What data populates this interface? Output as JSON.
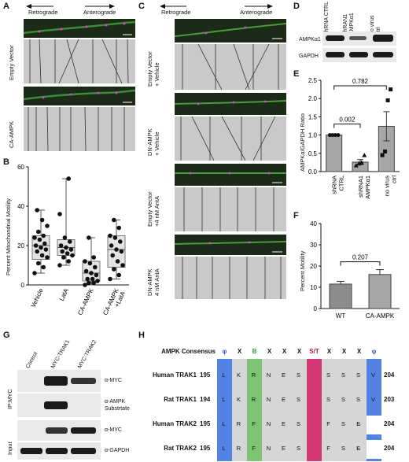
{
  "panel_letters": [
    "A",
    "B",
    "C",
    "D",
    "E",
    "F",
    "G",
    "H"
  ],
  "direction": {
    "retrograde": "Retrograde",
    "anterograde": "Anterograde"
  },
  "panel_a": {
    "row_labels": [
      "Empty Vector",
      "CA-AMPK"
    ]
  },
  "panel_c": {
    "row_labels": [
      "Empty Vector\n+ Vehicle",
      "DN-AMPK\n+ Vehicle",
      "Empty Vector\n+4 nM AntA",
      "DN-AMPK\n4 nM AntA"
    ]
  },
  "panel_d": {
    "lanes": [
      "shRNA CTRL",
      "shRAN1\nAMPKα1",
      "no virus\nctrl"
    ],
    "rows": [
      "AMPKα1",
      "GAPDH"
    ]
  },
  "panel_g": {
    "lanes": [
      "Control",
      "MYC-TRAK1",
      "MYC-TRAK2"
    ],
    "groups": [
      "IP:MYC",
      "Input"
    ],
    "rows": [
      "α-MYC",
      "α-AMPK\nSubstrtate",
      "α-MYC",
      "α-GAPDH"
    ]
  },
  "panel_h": {
    "consensus_label": "AMPK Consensus",
    "consensus": [
      "φ",
      "X",
      "B",
      "X",
      "X",
      "X",
      "S/T",
      "X",
      "X",
      "X",
      "φ"
    ],
    "rows": [
      {
        "name": "Human TRAK1",
        "start": "195",
        "end": "204",
        "residues": [
          "L",
          "K",
          "R",
          "N",
          "E",
          "S",
          "S",
          "S",
          "S",
          "V"
        ]
      },
      {
        "name": "Rat TRAK1",
        "start": "194",
        "end": "203",
        "residues": [
          "L",
          "K",
          "R",
          "N",
          "E",
          "S",
          "S",
          "S",
          "S",
          "V"
        ]
      },
      {
        "name": "Human TRAK2",
        "start": "195",
        "end": "204",
        "residues": [
          "L",
          "R",
          "F",
          "N",
          "E",
          "S",
          "F",
          "S",
          "L",
          "S"
        ]
      },
      {
        "name": "Rat TRAK2",
        "start": "195",
        "end": "204",
        "residues": [
          "L",
          "R",
          "F",
          "N",
          "E",
          "S",
          "F",
          "S",
          "L",
          "S"
        ]
      }
    ]
  },
  "chart_data": [
    {
      "panel": "B",
      "type": "box",
      "title": "",
      "ylabel": "Percent Mitochondrial Motility",
      "ylim": [
        0,
        60
      ],
      "yticks": [
        0,
        20,
        40,
        60
      ],
      "categories": [
        "Vehicle",
        "LatA",
        "CA-AMPK",
        "CA-AMPK\n+LatA"
      ],
      "boxes": [
        {
          "min": 6,
          "q1": 13,
          "median": 20,
          "q3": 25,
          "max": 38
        },
        {
          "min": 10,
          "q1": 15,
          "median": 19,
          "q3": 23,
          "max": 54
        },
        {
          "min": 0,
          "q1": 2,
          "median": 6,
          "q3": 12,
          "max": 24
        },
        {
          "min": 3,
          "q1": 9,
          "median": 18,
          "q3": 25,
          "max": 33
        }
      ],
      "points": [
        [
          6,
          9,
          11,
          14,
          15,
          17,
          18,
          19,
          20,
          21,
          23,
          24,
          25,
          27,
          30,
          33,
          38
        ],
        [
          10,
          12,
          14,
          15,
          16,
          17,
          18,
          19,
          20,
          22,
          24,
          36,
          54
        ],
        [
          0,
          1,
          1,
          2,
          3,
          3,
          5,
          6,
          7,
          9,
          11,
          12,
          14,
          24
        ],
        [
          3,
          5,
          8,
          10,
          12,
          15,
          17,
          18,
          20,
          22,
          24,
          25,
          29,
          33
        ]
      ]
    },
    {
      "panel": "E",
      "type": "bar",
      "title": "",
      "ylabel": "AMPKα/GAPDH Ratio",
      "ylim": [
        0,
        2.5
      ],
      "yticks": [
        "0.0",
        "0.5",
        "1.0",
        "1.5",
        "2.0",
        "2.5"
      ],
      "categories": [
        "shRNA\nCTRL",
        "shRNA1\nAMPKα1",
        "no virus\nctrl"
      ],
      "values": [
        1.0,
        0.26,
        1.24
      ],
      "errors": [
        0.0,
        0.07,
        0.4
      ],
      "points": [
        [
          1.0,
          1.0,
          1.0,
          1.0
        ],
        [
          0.17,
          0.22,
          0.25,
          0.45
        ],
        [
          0.45,
          0.55,
          1.95,
          2.25
        ]
      ],
      "markers": [
        "circle",
        "triangle",
        "square"
      ],
      "annotations": [
        {
          "between": [
            0,
            1
          ],
          "text": "0.002"
        },
        {
          "between": [
            0,
            2
          ],
          "text": "0.782"
        }
      ]
    },
    {
      "panel": "F",
      "type": "bar",
      "title": "",
      "ylabel": "Percent Motility",
      "ylim": [
        0,
        40
      ],
      "yticks": [
        "0",
        "10",
        "20",
        "30",
        "40"
      ],
      "categories": [
        "WT",
        "CA-AMPK"
      ],
      "values": [
        11.5,
        16
      ],
      "errors": [
        1.3,
        2.3
      ],
      "annotations": [
        {
          "between": [
            0,
            1
          ],
          "text": "0.207"
        }
      ]
    }
  ]
}
